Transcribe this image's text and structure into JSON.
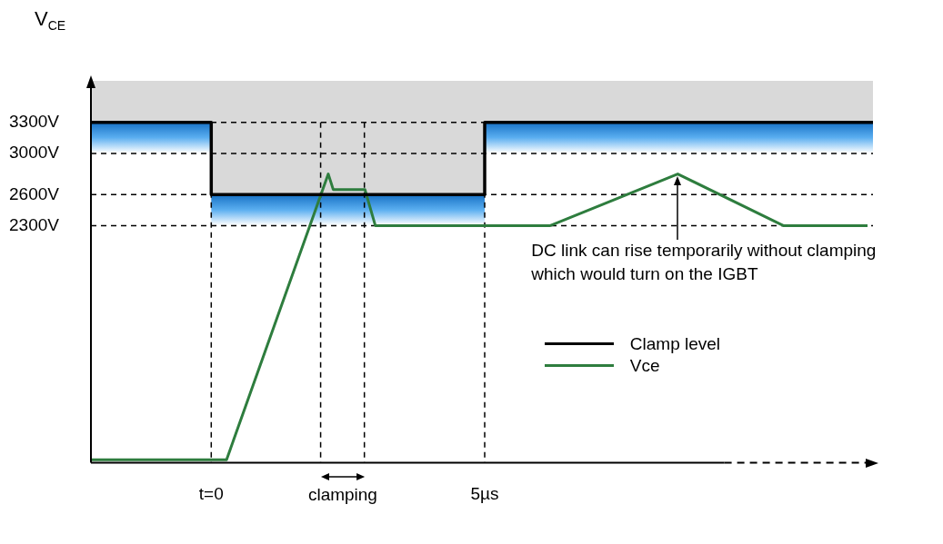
{
  "chart_data": {
    "type": "line",
    "xlim": [
      -2.2,
      12.1
    ],
    "ylim": [
      0,
      3700
    ],
    "xticks": [
      {
        "value": 0,
        "label": "t=0"
      },
      {
        "value": 5,
        "label": "5µs"
      }
    ],
    "yticks": [
      {
        "value": 2300,
        "label": "2300V"
      },
      {
        "value": 2600,
        "label": "2600V"
      },
      {
        "value": 3000,
        "label": "3000V"
      },
      {
        "value": 3300,
        "label": "3300V"
      }
    ],
    "ylabel": "V$_{CE}$",
    "grid": false,
    "legend": "right",
    "marker": "none",
    "line_style": "solid",
    "series": [
      {
        "name": "Clamp level",
        "color": "#000000",
        "x": [
          -2.2,
          0,
          0,
          5,
          5,
          12.1
        ],
        "values": [
          3300,
          3300,
          2600,
          2600,
          3300,
          3300
        ]
      },
      {
        "name": "Vce",
        "color": "#2e7d3e",
        "x": [
          -2.2,
          0.28,
          2.14,
          2.23,
          2.81,
          3.0,
          6.2,
          8.53,
          10.46,
          12.0
        ],
        "values": [
          30,
          30,
          2800,
          2650,
          2650,
          2300,
          2300,
          2800,
          2300,
          2300
        ]
      }
    ],
    "ref_lines": [
      {
        "axis": "y",
        "value": 3300,
        "line_style": "dashed",
        "color": "#000000"
      },
      {
        "axis": "y",
        "value": 3000,
        "line_style": "dashed",
        "color": "#000000"
      },
      {
        "axis": "y",
        "value": 2600,
        "line_style": "dashed",
        "color": "#000000"
      },
      {
        "axis": "y",
        "value": 2300,
        "line_style": "dashed",
        "color": "#000000"
      },
      {
        "axis": "x",
        "value": 0,
        "line_style": "dashed",
        "color": "#000000"
      },
      {
        "axis": "x",
        "value": 2.0,
        "line_style": "dashed",
        "color": "#000000"
      },
      {
        "axis": "x",
        "value": 2.8,
        "line_style": "dashed",
        "color": "#000000"
      },
      {
        "axis": "x",
        "value": 5,
        "line_style": "dashed",
        "color": "#000000"
      }
    ],
    "annotations": [
      "clamping",
      {
        "text": "DC link can rise temporarily without clamping\nwhich would turn on the IGBT",
        "x": 8.53,
        "y": 2800
      }
    ]
  }
}
